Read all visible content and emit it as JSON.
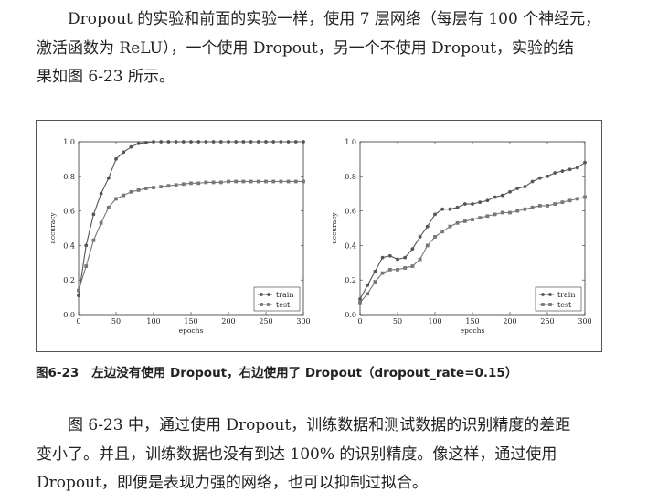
{
  "paragraph1": {
    "lines": [
      "Dropout 的实验和前面的实验一样，使用 7 层网络（每层有 100 个神经元，",
      "激活函数为 ReLU），一个使用 Dropout，另一个不使用 Dropout，实验的结",
      "果如图 6-23 所示。"
    ]
  },
  "figure": {
    "number": "图6-23",
    "caption": "左边没有使用 Dropout，右边使用了 Dropout（dropout_rate=0.15）"
  },
  "chart_data": [
    {
      "type": "line",
      "xlabel": "epochs",
      "ylabel": "accuracy",
      "xlim": [
        0,
        300
      ],
      "ylim": [
        0,
        1.0
      ],
      "xticks": [
        0,
        50,
        100,
        150,
        200,
        250,
        300
      ],
      "yticks": [
        0.0,
        0.2,
        0.4,
        0.6,
        0.8,
        1.0
      ],
      "legend_position": "bottom-right",
      "series": [
        {
          "name": "train",
          "marker": "circle",
          "x": [
            0,
            10,
            20,
            30,
            40,
            50,
            60,
            70,
            80,
            90,
            100,
            110,
            120,
            130,
            140,
            150,
            160,
            170,
            180,
            190,
            200,
            210,
            220,
            230,
            240,
            250,
            260,
            270,
            280,
            290,
            300
          ],
          "y": [
            0.11,
            0.4,
            0.58,
            0.7,
            0.79,
            0.9,
            0.94,
            0.97,
            0.99,
            0.995,
            1.0,
            1.0,
            1.0,
            1.0,
            1.0,
            1.0,
            1.0,
            1.0,
            1.0,
            1.0,
            1.0,
            1.0,
            1.0,
            1.0,
            1.0,
            1.0,
            1.0,
            1.0,
            1.0,
            1.0,
            1.0
          ]
        },
        {
          "name": "test",
          "marker": "square",
          "x": [
            0,
            10,
            20,
            30,
            40,
            50,
            60,
            70,
            80,
            90,
            100,
            110,
            120,
            130,
            140,
            150,
            160,
            170,
            180,
            190,
            200,
            210,
            220,
            230,
            240,
            250,
            260,
            270,
            280,
            290,
            300
          ],
          "y": [
            0.14,
            0.28,
            0.43,
            0.53,
            0.62,
            0.67,
            0.69,
            0.71,
            0.72,
            0.73,
            0.735,
            0.74,
            0.745,
            0.75,
            0.755,
            0.76,
            0.76,
            0.765,
            0.765,
            0.765,
            0.77,
            0.77,
            0.77,
            0.77,
            0.77,
            0.77,
            0.77,
            0.77,
            0.77,
            0.77,
            0.77
          ]
        }
      ]
    },
    {
      "type": "line",
      "xlabel": "epochs",
      "ylabel": "accuracy",
      "xlim": [
        0,
        300
      ],
      "ylim": [
        0,
        1.0
      ],
      "xticks": [
        0,
        50,
        100,
        150,
        200,
        250,
        300
      ],
      "yticks": [
        0.0,
        0.2,
        0.4,
        0.6,
        0.8,
        1.0
      ],
      "legend_position": "bottom-right",
      "series": [
        {
          "name": "train",
          "marker": "circle",
          "x": [
            0,
            10,
            20,
            30,
            40,
            50,
            60,
            70,
            80,
            90,
            100,
            110,
            120,
            130,
            140,
            150,
            160,
            170,
            180,
            190,
            200,
            210,
            220,
            230,
            240,
            250,
            260,
            270,
            280,
            290,
            300
          ],
          "y": [
            0.09,
            0.17,
            0.25,
            0.33,
            0.34,
            0.32,
            0.33,
            0.38,
            0.45,
            0.51,
            0.58,
            0.61,
            0.61,
            0.62,
            0.64,
            0.64,
            0.65,
            0.66,
            0.68,
            0.69,
            0.71,
            0.73,
            0.74,
            0.77,
            0.79,
            0.8,
            0.82,
            0.83,
            0.84,
            0.85,
            0.88
          ]
        },
        {
          "name": "test",
          "marker": "square",
          "x": [
            0,
            10,
            20,
            30,
            40,
            50,
            60,
            70,
            80,
            90,
            100,
            110,
            120,
            130,
            140,
            150,
            160,
            170,
            180,
            190,
            200,
            210,
            220,
            230,
            240,
            250,
            260,
            270,
            280,
            290,
            300
          ],
          "y": [
            0.07,
            0.12,
            0.19,
            0.24,
            0.26,
            0.26,
            0.27,
            0.28,
            0.32,
            0.4,
            0.45,
            0.48,
            0.51,
            0.53,
            0.54,
            0.55,
            0.56,
            0.57,
            0.58,
            0.59,
            0.59,
            0.6,
            0.61,
            0.62,
            0.63,
            0.63,
            0.64,
            0.65,
            0.66,
            0.67,
            0.68
          ]
        }
      ]
    }
  ],
  "paragraph2": {
    "lines": [
      "图 6-23 中，通过使用 Dropout，训练数据和测试数据的识别精度的差距",
      "变小了。并且，训练数据也没有到达 100% 的识别精度。像这样，通过使用",
      "Dropout，即便是表现力强的网络，也可以抑制过拟合。"
    ]
  }
}
